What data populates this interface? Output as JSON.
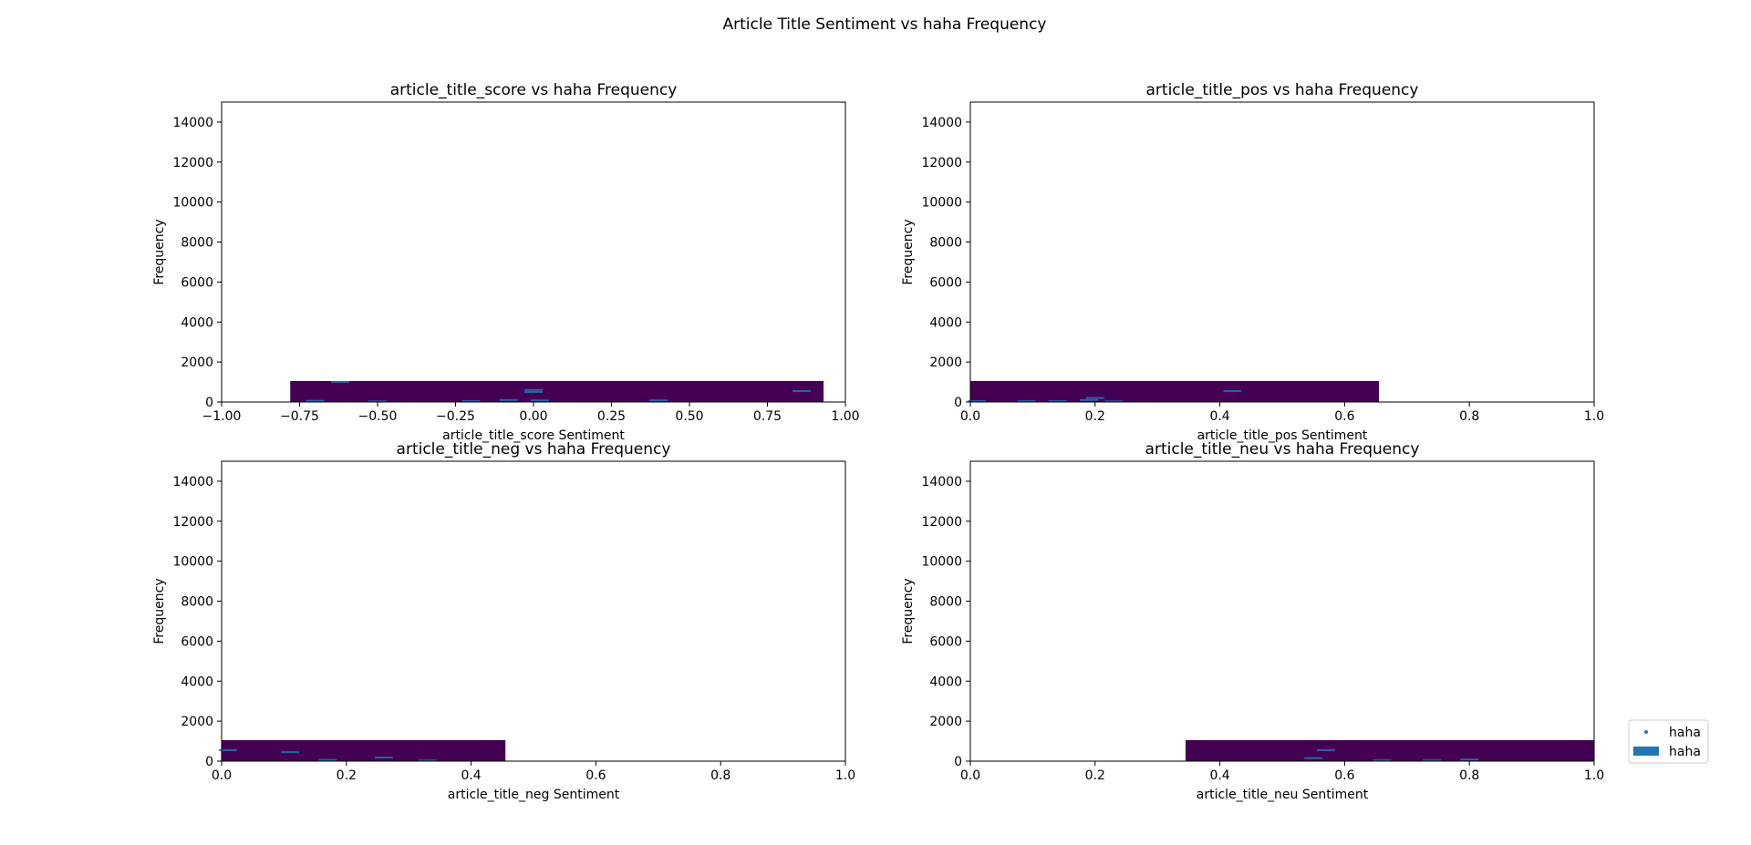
{
  "figure_title": "Article Title Sentiment vs haha Frequency",
  "colors": {
    "density": "#440154",
    "marks": "#1f77b4",
    "frame": "#000000",
    "background": "#ffffff"
  },
  "legend": {
    "placement": "right",
    "entries": [
      {
        "label": "haha",
        "marker": "point"
      },
      {
        "label": "haha",
        "marker": "bar"
      }
    ]
  },
  "chart_data": [
    {
      "type": "heatmap",
      "title": "article_title_score vs haha Frequency",
      "xlabel": "article_title_score Sentiment",
      "ylabel": "Frequency",
      "xlim": [
        -1.0,
        1.0
      ],
      "ylim": [
        0,
        15000
      ],
      "xticks": [
        "−1.00",
        "−0.75",
        "−0.50",
        "−0.25",
        "0.00",
        "0.25",
        "0.50",
        "0.75",
        "1.00"
      ],
      "xtick_values": [
        -1.0,
        -0.75,
        -0.5,
        -0.25,
        0.0,
        0.25,
        0.5,
        0.75,
        1.0
      ],
      "yticks": [
        "0",
        "2000",
        "4000",
        "6000",
        "8000",
        "10000",
        "12000",
        "14000"
      ],
      "ytick_values": [
        0,
        2000,
        4000,
        6000,
        8000,
        10000,
        12000,
        14000
      ],
      "density_band": {
        "x": [
          -0.78,
          0.93
        ],
        "y": [
          0,
          1050
        ]
      },
      "marks": [
        {
          "x": -0.7,
          "y": 60
        },
        {
          "x": -0.62,
          "y": 1000
        },
        {
          "x": -0.5,
          "y": 30
        },
        {
          "x": -0.2,
          "y": 40
        },
        {
          "x": -0.08,
          "y": 100
        },
        {
          "x": 0.0,
          "y": 500
        },
        {
          "x": 0.0,
          "y": 600
        },
        {
          "x": 0.02,
          "y": 80
        },
        {
          "x": 0.4,
          "y": 80
        },
        {
          "x": 0.86,
          "y": 550
        }
      ]
    },
    {
      "type": "heatmap",
      "title": "article_title_pos vs haha Frequency",
      "xlabel": "article_title_pos Sentiment",
      "ylabel": "Frequency",
      "xlim": [
        0.0,
        1.0
      ],
      "ylim": [
        0,
        15000
      ],
      "xticks": [
        "0.0",
        "0.2",
        "0.4",
        "0.6",
        "0.8",
        "1.0"
      ],
      "xtick_values": [
        0.0,
        0.2,
        0.4,
        0.6,
        0.8,
        1.0
      ],
      "yticks": [
        "0",
        "2000",
        "4000",
        "6000",
        "8000",
        "10000",
        "12000",
        "14000"
      ],
      "ytick_values": [
        0,
        2000,
        4000,
        6000,
        8000,
        10000,
        12000,
        14000
      ],
      "density_band": {
        "x": [
          0.0,
          0.655
        ],
        "y": [
          0,
          1050
        ]
      },
      "marks": [
        {
          "x": 0.01,
          "y": 40
        },
        {
          "x": 0.09,
          "y": 40
        },
        {
          "x": 0.14,
          "y": 40
        },
        {
          "x": 0.19,
          "y": 100
        },
        {
          "x": 0.2,
          "y": 200
        },
        {
          "x": 0.23,
          "y": 30
        },
        {
          "x": 0.42,
          "y": 550
        }
      ]
    },
    {
      "type": "heatmap",
      "title": "article_title_neg vs haha Frequency",
      "xlabel": "article_title_neg Sentiment",
      "ylabel": "Frequency",
      "xlim": [
        0.0,
        1.0
      ],
      "ylim": [
        0,
        15000
      ],
      "xticks": [
        "0.0",
        "0.2",
        "0.4",
        "0.6",
        "0.8",
        "1.0"
      ],
      "xtick_values": [
        0.0,
        0.2,
        0.4,
        0.6,
        0.8,
        1.0
      ],
      "yticks": [
        "0",
        "2000",
        "4000",
        "6000",
        "8000",
        "10000",
        "12000",
        "14000"
      ],
      "ytick_values": [
        0,
        2000,
        4000,
        6000,
        8000,
        10000,
        12000,
        14000
      ],
      "density_band": {
        "x": [
          0.0,
          0.455
        ],
        "y": [
          0,
          1050
        ]
      },
      "marks": [
        {
          "x": 0.01,
          "y": 550
        },
        {
          "x": 0.11,
          "y": 450
        },
        {
          "x": 0.17,
          "y": 60
        },
        {
          "x": 0.26,
          "y": 180
        },
        {
          "x": 0.33,
          "y": 30
        }
      ]
    },
    {
      "type": "heatmap",
      "title": "article_title_neu vs haha Frequency",
      "xlabel": "article_title_neu Sentiment",
      "ylabel": "Frequency",
      "xlim": [
        0.0,
        1.0
      ],
      "ylim": [
        0,
        15000
      ],
      "xticks": [
        "0.0",
        "0.2",
        "0.4",
        "0.6",
        "0.8",
        "1.0"
      ],
      "xtick_values": [
        0.0,
        0.2,
        0.4,
        0.6,
        0.8,
        1.0
      ],
      "yticks": [
        "0",
        "2000",
        "4000",
        "6000",
        "8000",
        "10000",
        "12000",
        "14000"
      ],
      "ytick_values": [
        0,
        2000,
        4000,
        6000,
        8000,
        10000,
        12000,
        14000
      ],
      "density_band": {
        "x": [
          0.345,
          1.0
        ],
        "y": [
          0,
          1050
        ]
      },
      "marks": [
        {
          "x": 0.55,
          "y": 150
        },
        {
          "x": 0.57,
          "y": 550
        },
        {
          "x": 0.66,
          "y": 40
        },
        {
          "x": 0.74,
          "y": 40
        },
        {
          "x": 0.8,
          "y": 80
        }
      ]
    }
  ]
}
